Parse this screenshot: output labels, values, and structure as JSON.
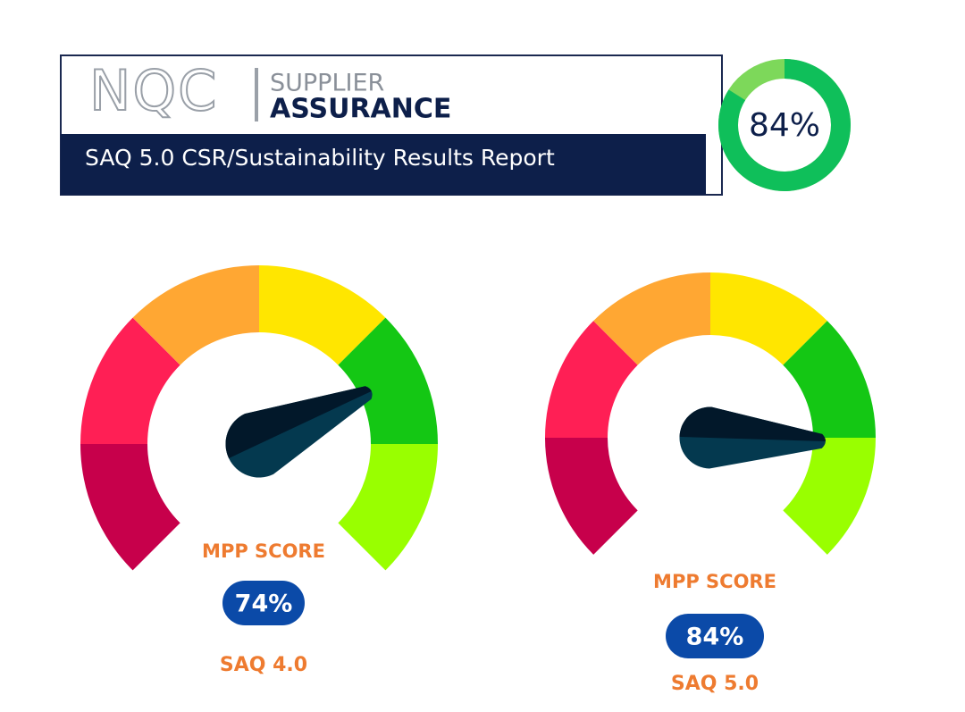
{
  "header": {
    "logo": "NQC",
    "brand_top": "SUPPLIER",
    "brand_bottom": "ASSURANCE",
    "title": "SAQ 5.0 CSR/Sustainability Results Report"
  },
  "chart_data": [
    {
      "type": "donut",
      "values": [
        84
      ],
      "value_labels": [
        "84%"
      ],
      "ylim": [
        0,
        100
      ],
      "color": "#0fbf5a",
      "track_color": "#7dd85a"
    },
    {
      "type": "gauge",
      "title": "MPP SCORE",
      "values": [
        74
      ],
      "value_labels": [
        "74%"
      ],
      "subtitle": "SAQ 4.0",
      "ylim": [
        0,
        100
      ],
      "segment_colors": [
        "#c7004b",
        "#ff1f55",
        "#ffa733",
        "#ffe600",
        "#14c714",
        "#99ff00"
      ],
      "needle_color": "#03364a"
    },
    {
      "type": "gauge",
      "title": "MPP SCORE",
      "values": [
        84
      ],
      "value_labels": [
        "84%"
      ],
      "subtitle": "SAQ 5.0",
      "ylim": [
        0,
        100
      ],
      "segment_colors": [
        "#c7004b",
        "#ff1f55",
        "#ffa733",
        "#ffe600",
        "#14c714",
        "#99ff00"
      ],
      "needle_color": "#03364a"
    }
  ]
}
